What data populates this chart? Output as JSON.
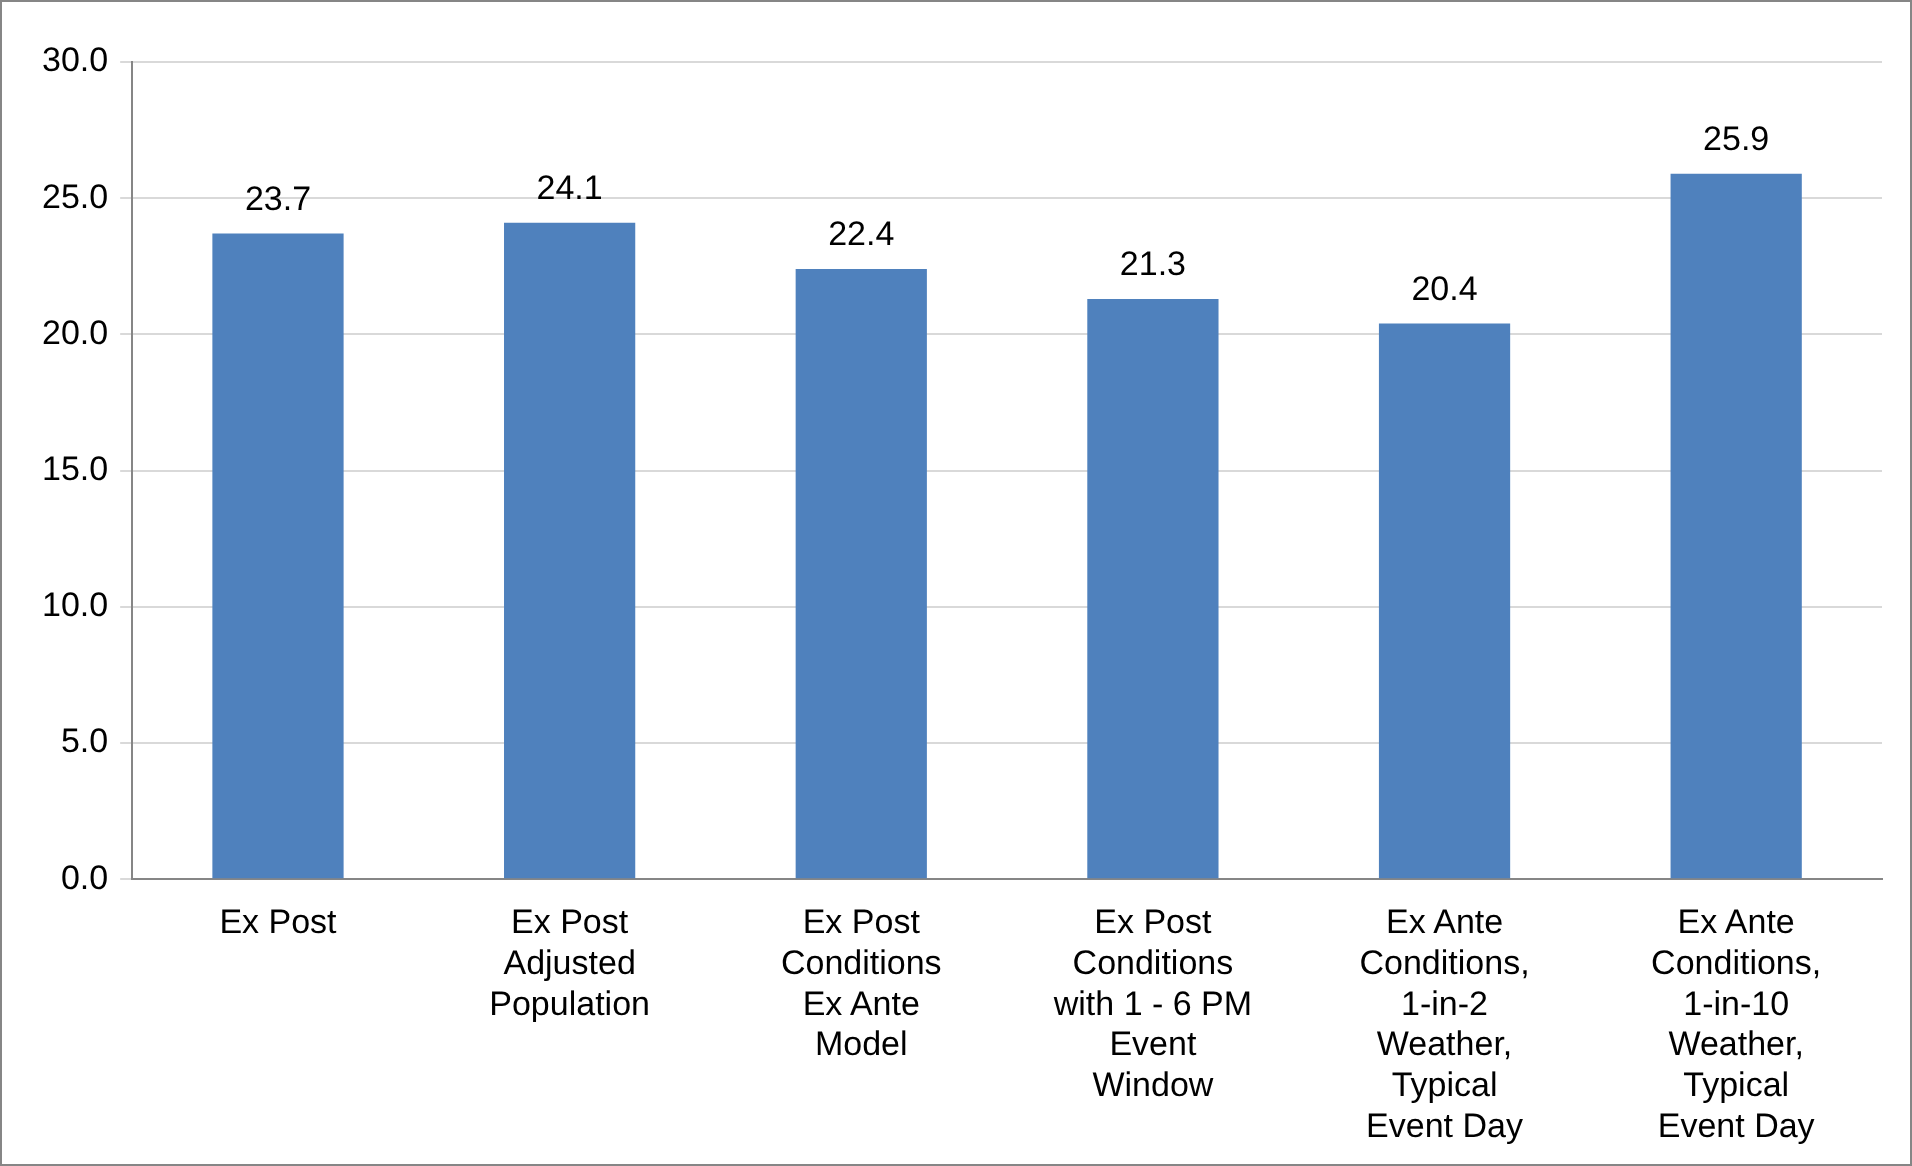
{
  "chart_data": {
    "type": "bar",
    "categories": [
      "Ex Post",
      "Ex Post Adjusted Population",
      "Ex Post Conditions Ex Ante Model",
      "Ex Post Conditions with 1 - 6 PM Event Window",
      "Ex Ante Conditions, 1-in-2 Weather, Typical Event Day",
      "Ex Ante Conditions, 1-in-10 Weather, Typical Event Day"
    ],
    "values": [
      23.7,
      24.1,
      22.4,
      21.3,
      20.4,
      25.9
    ],
    "color": "#4f81bd",
    "ylim": [
      0,
      30
    ],
    "yticks": [
      {
        "value": 0,
        "label": "0.0"
      },
      {
        "value": 5,
        "label": "5.0"
      },
      {
        "value": 10,
        "label": "10.0"
      },
      {
        "value": 15,
        "label": "15.0"
      },
      {
        "value": 20,
        "label": "20.0"
      },
      {
        "value": 25,
        "label": "25.0"
      },
      {
        "value": 30,
        "label": "30.0"
      }
    ],
    "grid": "y",
    "data_labels": true
  }
}
